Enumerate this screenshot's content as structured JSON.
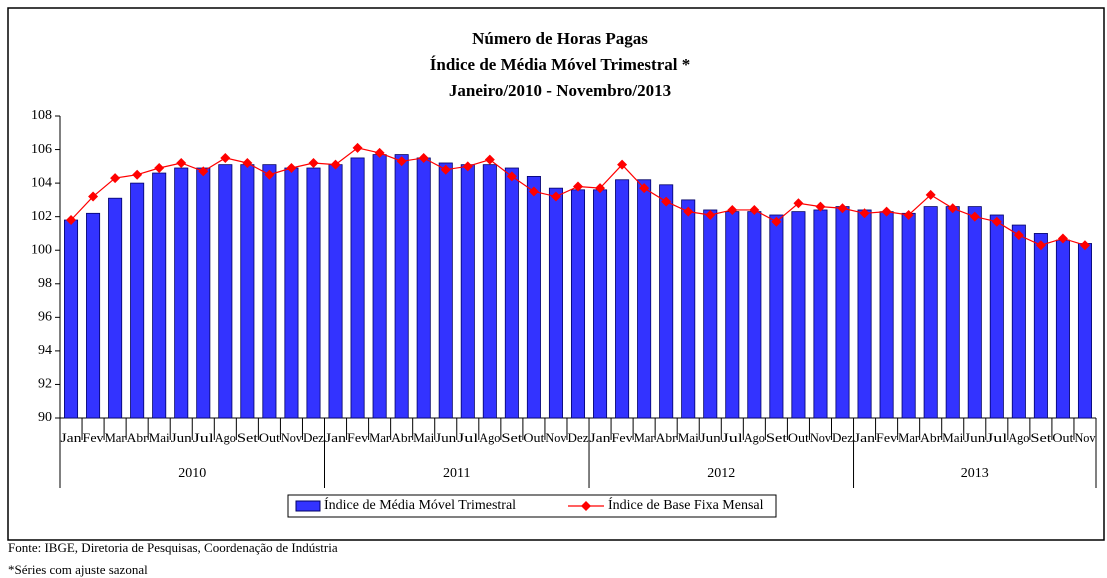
{
  "chart_data": {
    "type": "bar_line",
    "title_lines": [
      "Número de Horas Pagas",
      "Índice de Média Móvel Trimestral *",
      "Janeiro/2010 - Novembro/2013"
    ],
    "categories": [
      "Jan",
      "Fev",
      "Mar",
      "Abr",
      "Mai",
      "Jun",
      "Jul",
      "Ago",
      "Set",
      "Out",
      "Nov",
      "Dez",
      "Jan",
      "Fev",
      "Mar",
      "Abr",
      "Mai",
      "Jun",
      "Jul",
      "Ago",
      "Set",
      "Out",
      "Nov",
      "Dez",
      "Jan",
      "Fev",
      "Mar",
      "Abr",
      "Mai",
      "Jun",
      "Jul",
      "Ago",
      "Set",
      "Out",
      "Nov",
      "Dez",
      "Jan",
      "Fev",
      "Mar",
      "Abr",
      "Mai",
      "Jun",
      "Jul",
      "Ago",
      "Set",
      "Out",
      "Nov"
    ],
    "years": [
      "2010",
      "2011",
      "2012",
      "2013"
    ],
    "series": [
      {
        "name": "Índice de Média Móvel Trimestral",
        "kind": "bar",
        "color": "#3333ff",
        "values": [
          101.8,
          102.2,
          103.1,
          104.0,
          104.6,
          104.9,
          104.9,
          105.1,
          105.1,
          105.1,
          104.9,
          104.9,
          105.1,
          105.5,
          105.7,
          105.7,
          105.5,
          105.2,
          105.1,
          105.1,
          104.9,
          104.4,
          103.7,
          103.6,
          103.6,
          104.2,
          104.2,
          103.9,
          103.0,
          102.4,
          102.3,
          102.3,
          102.1,
          102.3,
          102.4,
          102.6,
          102.4,
          102.3,
          102.2,
          102.6,
          102.6,
          102.6,
          102.1,
          101.5,
          101.0,
          100.6,
          100.4
        ]
      },
      {
        "name": "Índice de Base Fixa Mensal",
        "kind": "line",
        "color": "#ff0000",
        "values": [
          101.8,
          103.2,
          104.3,
          104.5,
          104.9,
          105.2,
          104.7,
          105.5,
          105.2,
          104.5,
          104.9,
          105.2,
          105.1,
          106.1,
          105.8,
          105.3,
          105.5,
          104.8,
          105.0,
          105.4,
          104.4,
          103.5,
          103.2,
          103.8,
          103.7,
          105.1,
          103.7,
          102.9,
          102.3,
          102.1,
          102.4,
          102.4,
          101.7,
          102.8,
          102.6,
          102.5,
          102.2,
          102.3,
          102.1,
          103.3,
          102.5,
          102.0,
          101.7,
          100.9,
          100.3,
          100.7,
          100.3
        ]
      }
    ],
    "ylim": [
      90,
      108
    ],
    "yticks": [
      90,
      92,
      94,
      96,
      98,
      100,
      102,
      104,
      106,
      108
    ],
    "grid": false
  },
  "footer": {
    "source": "Fonte: IBGE, Diretoria de Pesquisas, Coordenação de Indústria",
    "note": "*Séries com ajuste sazonal"
  }
}
